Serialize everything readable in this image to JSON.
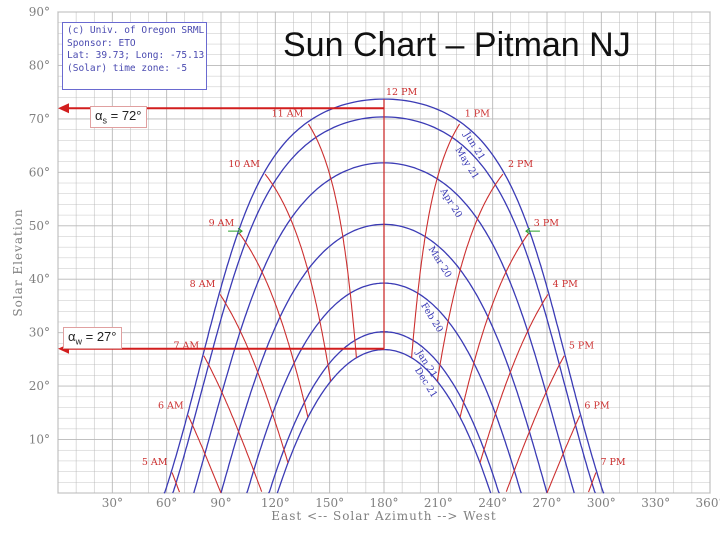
{
  "title": "Sun Chart – Pitman NJ",
  "info_box": {
    "lines": [
      "(c) Univ. of Oregon SRML",
      "Sponsor: ETO",
      "Lat: 39.73; Long: -75.13",
      "(Solar) time zone: -5"
    ]
  },
  "annotations": {
    "summer": {
      "symbol": "α",
      "sub": "s",
      "text": " = 72°"
    },
    "winter": {
      "symbol": "α",
      "sub": "w",
      "text": " = 27°"
    }
  },
  "colors": {
    "path": "#3b3bb5",
    "hour": "#cc3030",
    "grid": "#b8b8b8",
    "axis_text": "#808080",
    "marker_red": "#d21e1e",
    "marker_green": "#2aa02a"
  },
  "chart_data": {
    "type": "line",
    "xlabel": "East <-- Solar Azimuth --> West",
    "ylabel": "Solar Elevation",
    "xlim": [
      0,
      360
    ],
    "ylim": [
      0,
      90
    ],
    "x_ticks": [
      30,
      60,
      90,
      120,
      150,
      180,
      210,
      240,
      270,
      300,
      330,
      360
    ],
    "y_ticks": [
      10,
      20,
      30,
      40,
      50,
      60,
      70,
      80,
      90
    ],
    "grid": true,
    "latitude": 39.73,
    "date_paths": [
      {
        "label": "Jun 21",
        "declination": 23.44
      },
      {
        "label": "May 21",
        "declination": 20.1
      },
      {
        "label": "Apr 20",
        "declination": 11.5
      },
      {
        "label": "Mar 20",
        "declination": 0.0
      },
      {
        "label": "Feb 20",
        "declination": -11.0
      },
      {
        "label": "Jan 21",
        "declination": -20.1
      },
      {
        "label": "Dec 21",
        "declination": -23.44
      }
    ],
    "hour_lines": [
      {
        "label": "5 AM",
        "hour": 5
      },
      {
        "label": "6 AM",
        "hour": 6
      },
      {
        "label": "7 AM",
        "hour": 7
      },
      {
        "label": "8 AM",
        "hour": 8
      },
      {
        "label": "9 AM",
        "hour": 9
      },
      {
        "label": "10 AM",
        "hour": 10
      },
      {
        "label": "11 AM",
        "hour": 11
      },
      {
        "label": "12 PM",
        "hour": 12
      },
      {
        "label": "1 PM",
        "hour": 13
      },
      {
        "label": "2 PM",
        "hour": 14
      },
      {
        "label": "3 PM",
        "hour": 15
      },
      {
        "label": "4 PM",
        "hour": 16
      },
      {
        "label": "5 PM",
        "hour": 17
      },
      {
        "label": "6 PM",
        "hour": 18
      },
      {
        "label": "7 PM",
        "hour": 19
      }
    ],
    "markers": [
      {
        "kind": "summer_noon",
        "elevation": 72,
        "azimuth": 180
      },
      {
        "kind": "winter_noon",
        "elevation": 27,
        "azimuth": 180
      },
      {
        "kind": "9am_3pm_level",
        "elevation": 49
      }
    ]
  }
}
